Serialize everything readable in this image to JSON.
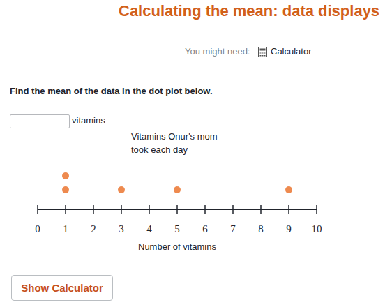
{
  "page": {
    "header": "Calculating the mean: data displays",
    "tool_hint": "You might need:",
    "tool": "Calculator",
    "question": "Find the mean of the data in the dot plot below.",
    "answer_unit": "vitamins",
    "button": "Show Calculator"
  },
  "chart_data": {
    "type": "dot",
    "title": "Vitamins Onur's mom took each day",
    "x_label": "Number of vitamins",
    "x": [
      1,
      3,
      5,
      9
    ],
    "values": [
      2,
      1,
      1,
      1
    ],
    "color": "#ee8a4f",
    "xlim": [
      0,
      10
    ],
    "xticks": [
      0,
      1,
      2,
      3,
      4,
      5,
      6,
      7,
      8,
      9,
      10
    ]
  }
}
